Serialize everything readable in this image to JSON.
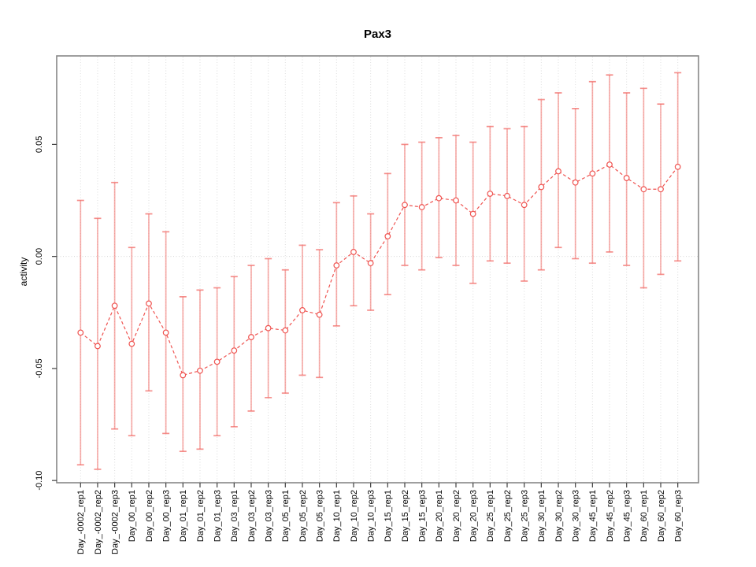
{
  "chart_data": {
    "type": "line",
    "subtype": "points-with-error-bars",
    "title": "Pax3",
    "xlabel": "",
    "ylabel": "activity",
    "legend": "none",
    "grid": "vertical-dotted-per-category",
    "zero_line": true,
    "point_marker": "open-circle",
    "line_style": "dashed",
    "ylim": [
      -0.101,
      0.0895
    ],
    "yticks": [
      -0.1,
      -0.05,
      0.0,
      0.05
    ],
    "ytick_labels": [
      "-0.10",
      "-0.05",
      "0.00",
      "0.05"
    ],
    "categories": [
      "Day_-0002_rep1",
      "Day_-0002_rep2",
      "Day_-0002_rep3",
      "Day_00_rep1",
      "Day_00_rep2",
      "Day_00_rep3",
      "Day_01_rep1",
      "Day_01_rep2",
      "Day_01_rep3",
      "Day_03_rep1",
      "Day_03_rep2",
      "Day_03_rep3",
      "Day_05_rep1",
      "Day_05_rep2",
      "Day_05_rep3",
      "Day_10_rep1",
      "Day_10_rep2",
      "Day_10_rep3",
      "Day_15_rep1",
      "Day_15_rep2",
      "Day_15_rep3",
      "Day_20_rep1",
      "Day_20_rep2",
      "Day_20_rep3",
      "Day_25_rep1",
      "Day_25_rep2",
      "Day_25_rep3",
      "Day_30_rep1",
      "Day_30_rep2",
      "Day_30_rep3",
      "Day_45_rep1",
      "Day_45_rep2",
      "Day_45_rep3",
      "Day_60_rep1",
      "Day_60_rep2",
      "Day_60_rep3"
    ],
    "series": [
      {
        "name": "activity",
        "values": [
          -0.034,
          -0.04,
          -0.022,
          -0.039,
          -0.021,
          -0.034,
          -0.053,
          -0.051,
          -0.047,
          -0.042,
          -0.036,
          -0.032,
          -0.033,
          -0.024,
          -0.026,
          -0.004,
          0.002,
          -0.003,
          0.009,
          0.023,
          0.022,
          0.026,
          0.025,
          0.019,
          0.028,
          0.027,
          0.023,
          0.031,
          0.038,
          0.033,
          0.037,
          0.041,
          0.035,
          0.03,
          0.03,
          0.04
        ],
        "ci_low": [
          -0.093,
          -0.095,
          -0.077,
          -0.08,
          -0.06,
          -0.079,
          -0.087,
          -0.086,
          -0.08,
          -0.076,
          -0.069,
          -0.063,
          -0.061,
          -0.053,
          -0.054,
          -0.031,
          -0.022,
          -0.024,
          -0.017,
          -0.004,
          -0.006,
          -0.0005,
          -0.004,
          -0.012,
          -0.002,
          -0.003,
          -0.011,
          -0.006,
          0.004,
          -0.001,
          -0.003,
          0.002,
          -0.004,
          -0.014,
          -0.008,
          -0.002
        ],
        "ci_high": [
          0.025,
          0.017,
          0.033,
          0.004,
          0.019,
          0.011,
          -0.018,
          -0.015,
          -0.014,
          -0.009,
          -0.004,
          -0.001,
          -0.006,
          0.005,
          0.003,
          0.024,
          0.027,
          0.019,
          0.037,
          0.05,
          0.051,
          0.053,
          0.054,
          0.051,
          0.058,
          0.057,
          0.058,
          0.07,
          0.073,
          0.066,
          0.078,
          0.081,
          0.073,
          0.075,
          0.068,
          0.082
        ]
      }
    ],
    "colors": {
      "series": "#ef5350",
      "error_bar": "#f16a65",
      "marker_fill": "#ffffff",
      "grid": "#dcdcdc",
      "zero_line": "#d8d8d8",
      "axis_frame": "#878787",
      "tick": "#404040",
      "text": "#000000",
      "background": "#ffffff"
    }
  }
}
